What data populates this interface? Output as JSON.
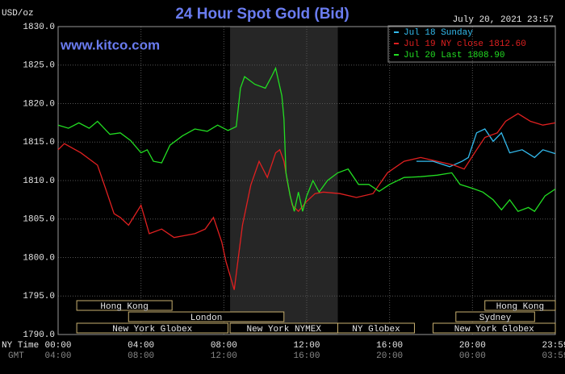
{
  "chart_data": {
    "type": "line",
    "title": "24 Hour Spot Gold (Bid)",
    "y_unit": "USD/oz",
    "website": "www.kitco.com",
    "timestamp": "July 20, 2021 23:57",
    "x_row_label": "NY Time",
    "x2_row_label": "GMT",
    "xlim": [
      0,
      24
    ],
    "xticks": [
      {
        "value": 0,
        "label": "00:00"
      },
      {
        "value": 4,
        "label": "04:00"
      },
      {
        "value": 8,
        "label": "08:00"
      },
      {
        "value": 12,
        "label": "12:00"
      },
      {
        "value": 16,
        "label": "16:00"
      },
      {
        "value": 20,
        "label": "20:00"
      },
      {
        "value": 24,
        "label": "23:59"
      }
    ],
    "gmt_labels": [
      "04:00",
      "08:00",
      "12:00",
      "16:00",
      "20:00",
      "00:00",
      "03:59"
    ],
    "ylim": [
      1790,
      1830
    ],
    "yticks": [
      {
        "value": 1790,
        "label": "1790.0"
      },
      {
        "value": 1795,
        "label": "1795.0"
      },
      {
        "value": 1800,
        "label": "1800.0"
      },
      {
        "value": 1805,
        "label": "1805.0"
      },
      {
        "value": 1810,
        "label": "1810.0"
      },
      {
        "value": 1815,
        "label": "1815.0"
      },
      {
        "value": 1820,
        "label": "1820.0"
      },
      {
        "value": 1825,
        "label": "1825.0"
      },
      {
        "value": 1830,
        "label": "1830.0"
      }
    ],
    "grid": true,
    "shade": [
      8.3,
      13.5
    ],
    "sessions": [
      {
        "label": "Hong Kong",
        "start": 0.9,
        "end": 5.5,
        "row": 0
      },
      {
        "label": "London",
        "start": 3.4,
        "end": 10.9,
        "row": 1
      },
      {
        "label": "New York Globex",
        "start": 0.9,
        "end": 8.2,
        "row": 2
      },
      {
        "label": "New York NYMEX",
        "start": 8.3,
        "end": 13.5,
        "row": 2
      },
      {
        "label": "NY Globex",
        "start": 13.5,
        "end": 17.2,
        "row": 2
      },
      {
        "label": "Hong Kong",
        "start": 20.6,
        "end": 24,
        "row": 0
      },
      {
        "label": "Sydney",
        "start": 19.2,
        "end": 23,
        "row": 1
      },
      {
        "label": "New York Globex",
        "start": 18.1,
        "end": 24,
        "row": 2
      }
    ],
    "series": [
      {
        "name": "Jul 18 Sunday",
        "color": "#33bbee",
        "x": [
          17.3,
          18.1,
          18.9,
          19.5,
          19.8,
          20.2,
          20.6,
          21,
          21.4,
          21.8,
          22.4,
          23,
          23.4,
          24
        ],
        "values": [
          1812.5,
          1812.5,
          1811.8,
          1812.5,
          1813,
          1816.2,
          1816.7,
          1815.1,
          1816.2,
          1813.6,
          1814,
          1813,
          1814,
          1813.5
        ]
      },
      {
        "name": "Jul 19 NY close 1812.60",
        "color": "#e02020",
        "x": [
          0,
          0.3,
          1.1,
          1.9,
          2.3,
          2.7,
          3,
          3.4,
          4,
          4.4,
          5,
          5.6,
          6.6,
          7.1,
          7.5,
          7.9,
          8.1,
          8.5,
          8.7,
          8.9,
          9.3,
          9.7,
          10.1,
          10.5,
          10.7,
          10.9,
          11.1,
          11.3,
          11.6,
          12,
          12.4,
          12.8,
          13.6,
          14.4,
          15.2,
          15.9,
          16.7,
          17.5,
          18.3,
          19.1,
          19.6,
          20.2,
          20.6,
          21.2,
          21.6,
          22.2,
          22.8,
          23.4,
          24
        ],
        "values": [
          1814,
          1814.8,
          1813.6,
          1812,
          1808.9,
          1805.7,
          1805.2,
          1804.2,
          1806.8,
          1803.1,
          1803.7,
          1802.6,
          1803.1,
          1803.7,
          1805.2,
          1802,
          1799.5,
          1795.8,
          1800,
          1804.2,
          1809.4,
          1812.5,
          1810.4,
          1813.6,
          1814,
          1812.5,
          1809.4,
          1806.8,
          1806,
          1807.3,
          1808.3,
          1808.5,
          1808.3,
          1807.8,
          1808.3,
          1811,
          1812.5,
          1813,
          1812.5,
          1812,
          1811.5,
          1814,
          1815.6,
          1816.2,
          1817.7,
          1818.7,
          1817.7,
          1817.2,
          1817.5
        ]
      },
      {
        "name": "Jul 20 Last 1808.90",
        "color": "#22dd22",
        "x": [
          0,
          0.5,
          1,
          1.5,
          1.9,
          2.5,
          3,
          3.5,
          4,
          4.3,
          4.6,
          5,
          5.4,
          6,
          6.6,
          7.2,
          7.7,
          8.2,
          8.6,
          8.8,
          9,
          9.5,
          10,
          10.3,
          10.5,
          10.8,
          10.9,
          11,
          11.2,
          11.4,
          11.6,
          11.8,
          12,
          12.3,
          12.6,
          13,
          13.5,
          14,
          14.5,
          15,
          15.5,
          16,
          16.7,
          17.5,
          18.3,
          19,
          19.4,
          20,
          20.5,
          21,
          21.4,
          21.8,
          22.2,
          22.7,
          23,
          23.5,
          24
        ],
        "values": [
          1817.2,
          1816.8,
          1817.5,
          1816.8,
          1817.7,
          1816,
          1816.2,
          1815.2,
          1813.6,
          1814,
          1812.5,
          1812.3,
          1814.6,
          1815.8,
          1816.7,
          1816.4,
          1817.2,
          1816.5,
          1817,
          1822,
          1823.5,
          1822.5,
          1822,
          1823.5,
          1824.6,
          1821,
          1818,
          1811,
          1808,
          1806,
          1808.5,
          1806,
          1808,
          1810,
          1808.5,
          1810,
          1811,
          1811.5,
          1809.5,
          1809.5,
          1808.6,
          1809.5,
          1810.4,
          1810.5,
          1810.7,
          1811,
          1809.5,
          1809,
          1808.5,
          1807.5,
          1806.2,
          1807.5,
          1806,
          1806.5,
          1806,
          1808,
          1808.9
        ]
      }
    ]
  }
}
